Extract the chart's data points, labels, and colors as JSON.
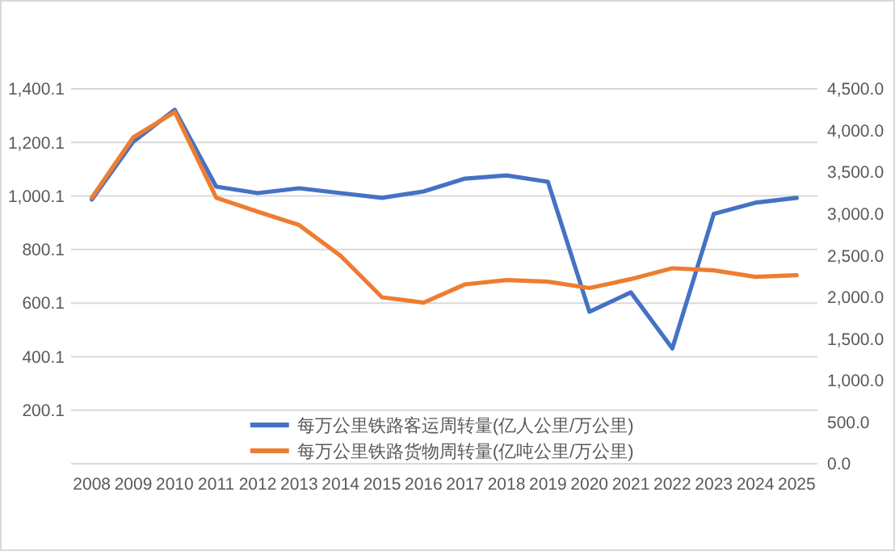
{
  "chart_data": {
    "type": "line",
    "categories": [
      "2008",
      "2009",
      "2010",
      "2011",
      "2012",
      "2013",
      "2014",
      "2015",
      "2016",
      "2017",
      "2018",
      "2019",
      "2020",
      "2021",
      "2022",
      "2023",
      "2024",
      "2025"
    ],
    "series": [
      {
        "name": "每万公里铁路客运周转量(亿人公里/万公里)",
        "color": "#4472c4",
        "values": [
          987,
          1203,
          1322,
          1035,
          1011,
          1029,
          1011,
          993,
          1017,
          1065,
          1077,
          1053,
          568,
          640,
          431,
          933,
          975,
          993
        ]
      },
      {
        "name": "每万公里铁路货物周转量(亿吨公里/万公里)",
        "color": "#ed7d31",
        "axis": "y2",
        "values": [
          3194,
          3918,
          4222,
          3194,
          3026,
          2865,
          2496,
          1998,
          1934,
          2153,
          2205,
          2186,
          2109,
          2217,
          2347,
          2322,
          2244,
          2263
        ]
      }
    ],
    "ylim": [
      0.1,
      1400.1
    ],
    "yticks": [
      200.1,
      400.1,
      600.1,
      800.1,
      {
        "value": 1000.1,
        "label": "1,000.1"
      },
      {
        "value": 1200.1,
        "label": "1,200.1"
      },
      {
        "value": 1400.1,
        "label": "1,400.1"
      }
    ],
    "y2lim": [
      0,
      4500
    ],
    "y2ticks": [
      {
        "value": 0,
        "label": "0.0"
      },
      {
        "value": 500,
        "label": "500.0"
      },
      {
        "value": 1000,
        "label": "1,000.0"
      },
      {
        "value": 1500,
        "label": "1,500.0"
      },
      {
        "value": 2000,
        "label": "2,000.0"
      },
      {
        "value": 2500,
        "label": "2,500.0"
      },
      {
        "value": 3000,
        "label": "3,000.0"
      },
      {
        "value": 3500,
        "label": "3,500.0"
      },
      {
        "value": 4000,
        "label": "4,000.0"
      },
      {
        "value": 4500,
        "label": "4,500.0"
      }
    ],
    "grid": "y",
    "legend": "bottom",
    "marker": "none",
    "line_style": "solid"
  }
}
